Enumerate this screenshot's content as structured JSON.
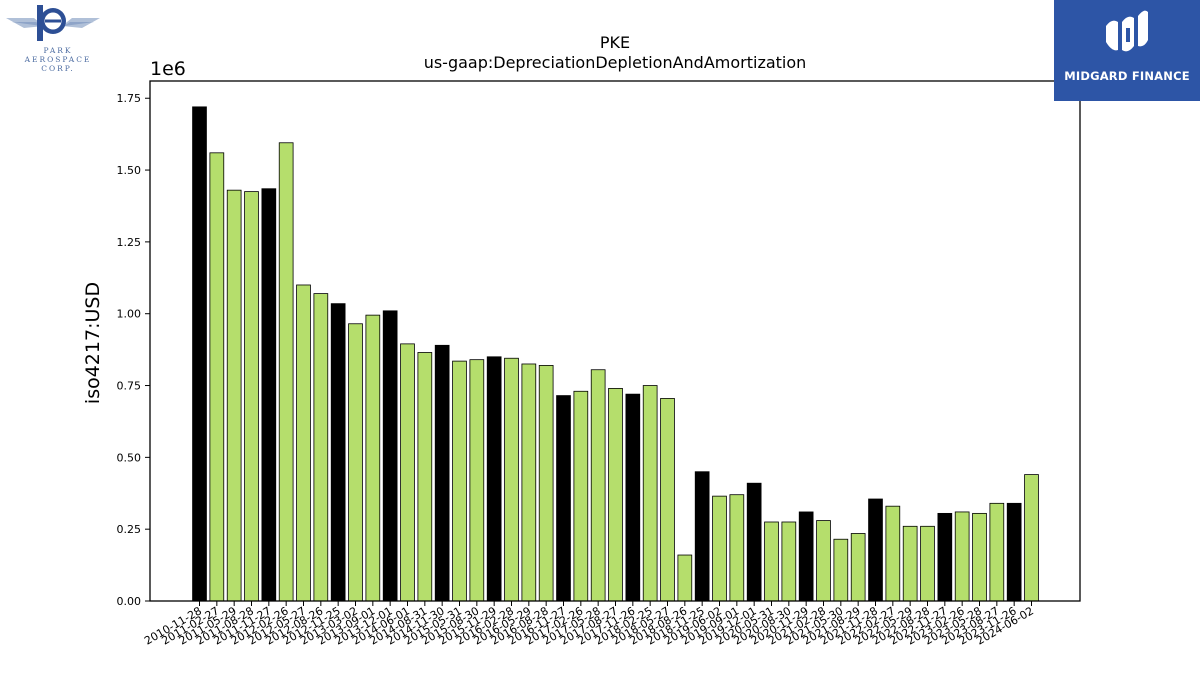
{
  "logos": {
    "left": {
      "line1": "PARK",
      "line2": "AEROSPACE",
      "line3": "CORP."
    },
    "right": {
      "name": "MIDGARD FINANCE"
    }
  },
  "colors": {
    "primary_bar": "#000000",
    "secondary_bar": "#b5de6c",
    "logo_blue": "#2d55a6"
  },
  "chart_data": {
    "type": "bar",
    "title": "PKE",
    "subtitle": "us-gaap:DepreciationDepletionAndAmortization",
    "xlabel": "",
    "ylabel": "iso4217:USD",
    "y_multiplier_label": "1e6",
    "ylim": [
      0,
      1.81
    ],
    "yticks": [
      "0.00",
      "0.25",
      "0.50",
      "0.75",
      "1.00",
      "1.25",
      "1.50",
      "1.75"
    ],
    "grid": false,
    "categories": [
      "2010-11-28",
      "2011-02-27",
      "2011-05-29",
      "2011-08-28",
      "2011-11-27",
      "2012-02-26",
      "2012-05-27",
      "2012-08-26",
      "2012-11-25",
      "2013-03-02",
      "2013-09-01",
      "2013-12-01",
      "2014-06-01",
      "2014-08-31",
      "2014-11-30",
      "2015-05-31",
      "2015-08-30",
      "2015-11-29",
      "2016-02-28",
      "2016-05-29",
      "2016-08-28",
      "2016-11-27",
      "2017-02-26",
      "2017-05-28",
      "2017-08-27",
      "2017-11-26",
      "2018-02-25",
      "2018-05-27",
      "2018-08-26",
      "2018-11-25",
      "2019-06-02",
      "2019-09-01",
      "2019-12-01",
      "2020-05-31",
      "2020-08-30",
      "2020-11-29",
      "2021-02-28",
      "2021-05-30",
      "2021-08-29",
      "2021-11-28",
      "2022-02-27",
      "2022-05-29",
      "2022-08-28",
      "2022-11-27",
      "2023-02-26",
      "2023-05-28",
      "2023-08-27",
      "2023-11-26",
      "2024-06-02"
    ],
    "values": [
      1.72,
      1.56,
      1.43,
      1.425,
      1.435,
      1.595,
      1.1,
      1.07,
      1.035,
      0.965,
      0.995,
      1.01,
      0.895,
      0.865,
      0.89,
      0.835,
      0.84,
      0.85,
      0.845,
      0.825,
      0.82,
      0.715,
      0.73,
      0.805,
      0.74,
      0.72,
      0.75,
      0.705,
      0.16,
      0.45,
      0.365,
      0.37,
      0.41,
      0.275,
      0.275,
      0.31,
      0.28,
      0.215,
      0.235,
      0.355,
      0.33,
      0.26,
      0.26,
      0.305,
      0.31,
      0.305,
      0.34,
      0.34,
      0.44
    ],
    "highlight_indices": [
      0,
      4,
      8,
      11,
      14,
      17,
      21,
      25,
      29,
      32,
      35,
      39,
      43,
      47
    ]
  }
}
